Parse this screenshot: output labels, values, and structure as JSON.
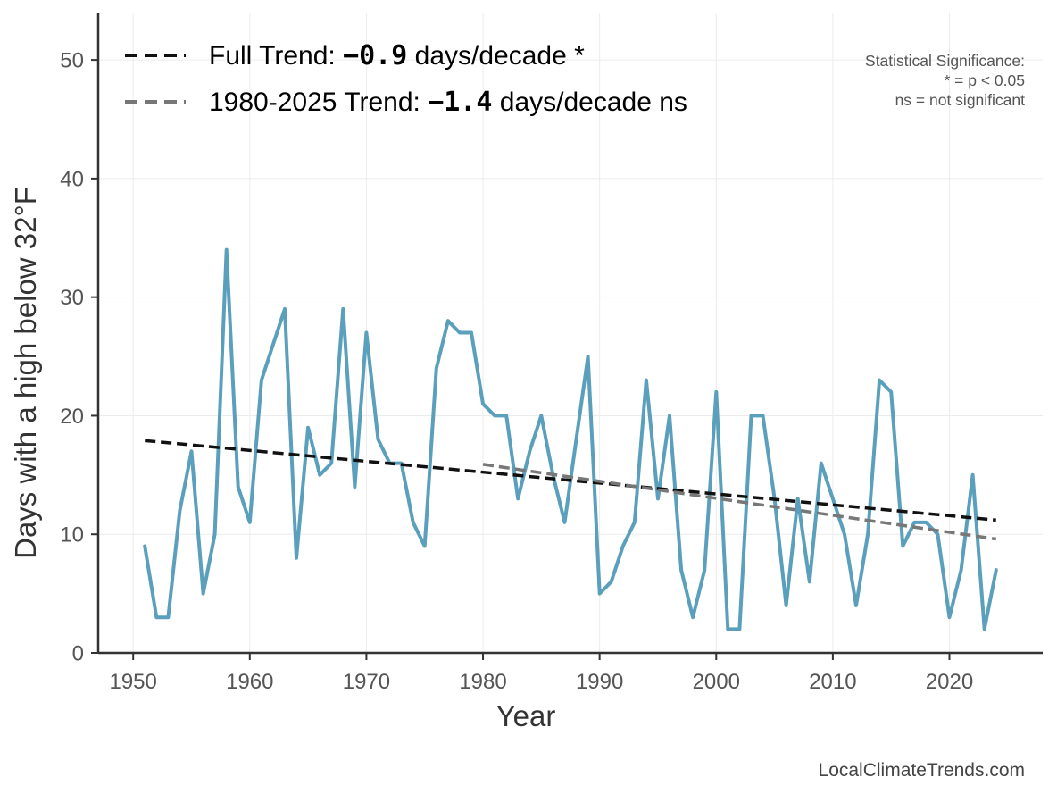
{
  "chart_data": {
    "type": "line",
    "xlabel": "Year",
    "ylabel": "Days with a high below 32°F",
    "xlim": [
      1947,
      2028
    ],
    "ylim": [
      0,
      54
    ],
    "x_ticks": [
      1950,
      1960,
      1970,
      1980,
      1990,
      2000,
      2010,
      2020
    ],
    "y_ticks": [
      0,
      10,
      20,
      30,
      40,
      50
    ],
    "grid": true,
    "series": [
      {
        "color": "#5a9fbc",
        "x": [
          1951,
          1952,
          1953,
          1954,
          1955,
          1956,
          1957,
          1958,
          1959,
          1960,
          1961,
          1962,
          1963,
          1964,
          1965,
          1966,
          1967,
          1968,
          1969,
          1970,
          1971,
          1972,
          1973,
          1974,
          1975,
          1976,
          1977,
          1978,
          1979,
          1980,
          1981,
          1982,
          1983,
          1984,
          1985,
          1986,
          1987,
          1988,
          1989,
          1990,
          1991,
          1992,
          1993,
          1994,
          1995,
          1996,
          1997,
          1998,
          1999,
          2000,
          2001,
          2002,
          2003,
          2004,
          2005,
          2006,
          2007,
          2008,
          2009,
          2010,
          2011,
          2012,
          2013,
          2014,
          2015,
          2016,
          2017,
          2018,
          2019,
          2020,
          2021,
          2022,
          2023,
          2024
        ],
        "values": [
          9,
          3,
          3,
          12,
          17,
          5,
          10,
          34,
          14,
          11,
          23,
          26,
          29,
          8,
          19,
          15,
          16,
          29,
          14,
          27,
          18,
          16,
          16,
          11,
          9,
          24,
          28,
          27,
          27,
          21,
          20,
          20,
          13,
          17,
          20,
          15,
          11,
          18,
          25,
          5,
          6,
          9,
          11,
          23,
          13,
          20,
          7,
          3,
          7,
          22,
          2,
          2,
          20,
          20,
          13,
          4,
          13,
          6,
          16,
          13,
          10,
          4,
          10,
          23,
          22,
          9,
          11,
          11,
          10,
          3,
          7,
          15,
          2,
          7
        ]
      }
    ],
    "trend_lines": [
      {
        "x": [
          1951,
          2024
        ],
        "values": [
          17.9,
          11.2
        ],
        "color": "#111111",
        "label_prefix": "Full Trend: ",
        "label_value": "−0.9",
        "label_suffix": " days/decade *"
      },
      {
        "x": [
          1980,
          2024
        ],
        "values": [
          15.9,
          9.6
        ],
        "color": "#777777",
        "label_prefix": "1980-2025 Trend: ",
        "label_value": "−1.4",
        "label_suffix": " days/decade ns"
      }
    ],
    "legend_position": "top-left",
    "significance_note": [
      "Statistical Significance:",
      "* = p < 0.05",
      "ns = not significant"
    ],
    "credit": "LocalClimateTrends.com"
  }
}
